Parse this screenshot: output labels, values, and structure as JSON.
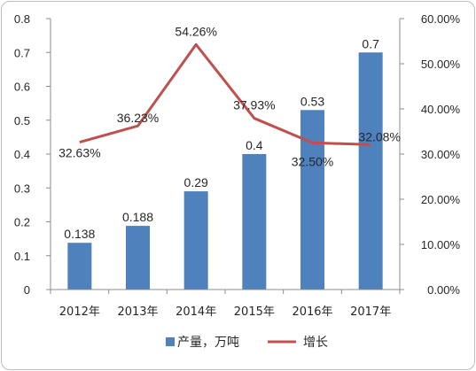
{
  "chart_data": {
    "type": "bar",
    "categories": [
      "2012年",
      "2013年",
      "2014年",
      "2015年",
      "2016年",
      "2017年"
    ],
    "series": [
      {
        "name": "产量，万吨",
        "type": "bar",
        "axis": "left",
        "color": "#4f81bd",
        "values": [
          0.138,
          0.188,
          0.29,
          0.4,
          0.53,
          0.7
        ],
        "labels": [
          "0.138",
          "0.188",
          "0.29",
          "0.4",
          "0.53",
          "0.7"
        ]
      },
      {
        "name": "增长",
        "type": "line",
        "axis": "right",
        "color": "#c0504d",
        "values": [
          32.63,
          36.23,
          54.26,
          37.93,
          32.5,
          32.08
        ],
        "labels": [
          "32.63%",
          "36.23%",
          "54.26%",
          "37.93%",
          "32.50%",
          "32.08%"
        ]
      }
    ],
    "y_left": {
      "min": 0,
      "max": 0.8,
      "ticks": [
        "0",
        "0.1",
        "0.2",
        "0.3",
        "0.4",
        "0.5",
        "0.6",
        "0.7",
        "0.8"
      ]
    },
    "y_right": {
      "min": 0,
      "max": 60,
      "ticks": [
        "0.00%",
        "10.00%",
        "20.00%",
        "30.00%",
        "40.00%",
        "50.00%",
        "60.00%"
      ]
    },
    "legend": {
      "position": "bottom"
    },
    "grid": false
  }
}
